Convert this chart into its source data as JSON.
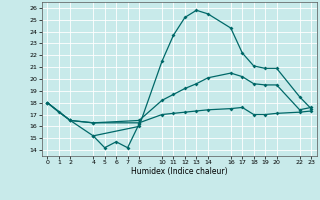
{
  "xlabel": "Humidex (Indice chaleur)",
  "bg_color": "#c8eaea",
  "grid_color": "#ffffff",
  "line_color": "#006868",
  "xlim": [
    -0.5,
    23.5
  ],
  "ylim": [
    13.5,
    26.5
  ],
  "yticks": [
    14,
    15,
    16,
    17,
    18,
    19,
    20,
    21,
    22,
    23,
    24,
    25,
    26
  ],
  "xticks": [
    0,
    1,
    2,
    4,
    5,
    6,
    7,
    8,
    10,
    11,
    12,
    13,
    14,
    16,
    17,
    18,
    19,
    20,
    22,
    23
  ],
  "line1_x": [
    0,
    1,
    2,
    4,
    8,
    10,
    11,
    12,
    13,
    14,
    16,
    17,
    18,
    19,
    20,
    22,
    23
  ],
  "line1_y": [
    18.0,
    17.2,
    16.5,
    15.2,
    16.0,
    21.5,
    23.7,
    25.2,
    25.8,
    25.5,
    24.3,
    22.2,
    21.1,
    20.9,
    20.9,
    18.5,
    17.5
  ],
  "line2_x": [
    0,
    2,
    4,
    8,
    10,
    11,
    12,
    13,
    14,
    16,
    17,
    18,
    19,
    20,
    22,
    23
  ],
  "line2_y": [
    18.0,
    16.5,
    16.3,
    16.5,
    18.2,
    18.7,
    19.2,
    19.6,
    20.1,
    20.5,
    20.2,
    19.6,
    19.5,
    19.5,
    17.4,
    17.6
  ],
  "line3_x": [
    0,
    2,
    4,
    8,
    10,
    11,
    12,
    13,
    14,
    16,
    17,
    18,
    19,
    20,
    22,
    23
  ],
  "line3_y": [
    18.0,
    16.5,
    16.3,
    16.3,
    17.0,
    17.1,
    17.2,
    17.3,
    17.4,
    17.5,
    17.6,
    17.0,
    17.0,
    17.1,
    17.2,
    17.3
  ],
  "line4_x": [
    4,
    5,
    6,
    7,
    8
  ],
  "line4_y": [
    15.2,
    14.2,
    14.7,
    14.2,
    16.2
  ]
}
